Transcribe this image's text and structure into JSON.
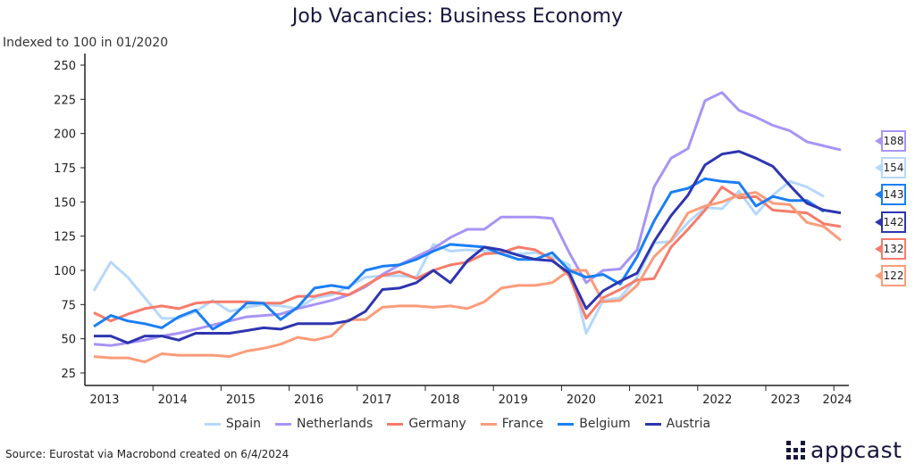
{
  "chart_data": {
    "type": "line",
    "title": "Job Vacancies: Business Economy",
    "ylabel": "Indexed to 100 in 01/2020",
    "xlabel": "",
    "ylim": [
      25,
      250
    ],
    "yticks": [
      25,
      50,
      75,
      100,
      125,
      150,
      175,
      200,
      225,
      250
    ],
    "x_start": "2013Q1",
    "frequency": "quarterly",
    "xticks": [
      "2013",
      "2014",
      "2015",
      "2016",
      "2017",
      "2018",
      "2019",
      "2020",
      "2021",
      "2022",
      "2023",
      "2024"
    ],
    "legend_position": "bottom",
    "grid": false,
    "series": [
      {
        "name": "Spain",
        "color": "#b5d8fb",
        "values": [
          85,
          106,
          95,
          80,
          65,
          65,
          70,
          78,
          70,
          73,
          75,
          74,
          72,
          80,
          82,
          88,
          95,
          96,
          96,
          95,
          119,
          114,
          115,
          114,
          112,
          112,
          113,
          110,
          104,
          54,
          78,
          80,
          95,
          120,
          121,
          135,
          146,
          145,
          158,
          141,
          155,
          165,
          161,
          154,
          null
        ],
        "end_label": "154"
      },
      {
        "name": "Netherlands",
        "color": "#a894f5",
        "values": [
          46,
          45,
          47,
          49,
          52,
          54,
          57,
          60,
          63,
          66,
          67,
          68,
          72,
          75,
          78,
          82,
          88,
          97,
          104,
          110,
          116,
          124,
          130,
          130,
          139,
          139,
          139,
          138,
          113,
          91,
          100,
          101,
          115,
          161,
          182,
          189,
          224,
          230,
          217,
          212,
          206,
          202,
          194,
          191,
          188
        ],
        "end_label": "188"
      },
      {
        "name": "Germany",
        "color": "#f77b6b",
        "values": [
          69,
          63,
          68,
          72,
          74,
          72,
          76,
          77,
          77,
          77,
          76,
          76,
          81,
          81,
          84,
          82,
          89,
          96,
          99,
          94,
          100,
          104,
          106,
          112,
          113,
          117,
          115,
          108,
          96,
          65,
          80,
          86,
          93,
          94,
          117,
          130,
          144,
          161,
          153,
          154,
          144,
          143,
          142,
          134,
          132
        ],
        "end_label": "132"
      },
      {
        "name": "France",
        "color": "#fb9c7a",
        "values": [
          37,
          36,
          36,
          33,
          39,
          38,
          38,
          38,
          37,
          41,
          43,
          46,
          51,
          49,
          52,
          64,
          64,
          73,
          74,
          74,
          73,
          74,
          72,
          77,
          87,
          89,
          89,
          91,
          100,
          100,
          77,
          78,
          89,
          110,
          122,
          142,
          147,
          150,
          155,
          157,
          149,
          148,
          135,
          132,
          122
        ],
        "end_label": "122"
      },
      {
        "name": "Belgium",
        "color": "#1a7ef5",
        "values": [
          59,
          67,
          63,
          61,
          58,
          66,
          71,
          57,
          64,
          76,
          76,
          64,
          73,
          87,
          89,
          87,
          100,
          103,
          104,
          108,
          114,
          119,
          118,
          117,
          112,
          108,
          108,
          113,
          100,
          95,
          97,
          90,
          110,
          136,
          157,
          160,
          167,
          165,
          164,
          147,
          154,
          151,
          151,
          143,
          null
        ],
        "end_label": "143"
      },
      {
        "name": "Austria",
        "color": "#2e35b0",
        "values": [
          52,
          52,
          47,
          52,
          52,
          49,
          54,
          54,
          54,
          56,
          58,
          57,
          61,
          61,
          61,
          63,
          70,
          86,
          87,
          91,
          100,
          91,
          107,
          117,
          115,
          111,
          108,
          107,
          98,
          72,
          85,
          92,
          98,
          121,
          140,
          155,
          177,
          185,
          187,
          182,
          176,
          162,
          149,
          144,
          142
        ],
        "end_label": "142"
      }
    ]
  },
  "end_label_order": [
    "Netherlands",
    "Spain",
    "Belgium",
    "Austria",
    "Germany",
    "France"
  ],
  "source": "Source: Eurostat via Macrobond created on 6/4/2024",
  "logo_text": "appcast"
}
